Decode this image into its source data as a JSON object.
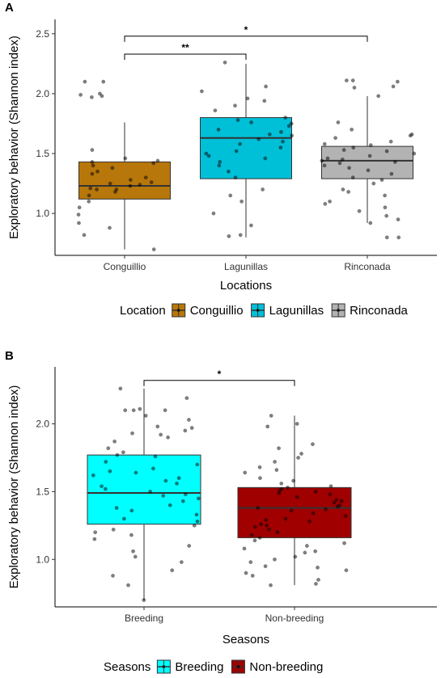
{
  "chart_data": [
    {
      "type": "box",
      "panel_label": "A",
      "xlabel": "Locations",
      "ylabel": "Exploratory behavior (Shannon index)",
      "ylim": [
        0.65,
        2.62
      ],
      "yticks": [
        1.0,
        1.5,
        2.0,
        2.5
      ],
      "ytick_labels": [
        "1.0",
        "1.5",
        "2.0",
        "2.5"
      ],
      "grid": false,
      "legend": {
        "title": "Location",
        "position": "bottom"
      },
      "categories": [
        "Conguillio",
        "Lagunillas",
        "Rinconada"
      ],
      "series": [
        {
          "name": "Conguillio",
          "color": "#b8770a",
          "box": {
            "min": 0.7,
            "q1": 1.12,
            "median": 1.23,
            "q3": 1.43,
            "max": 1.76
          },
          "points": [
            2.1,
            2.1,
            2.0,
            1.98,
            1.99,
            1.97,
            1.53,
            1.46,
            1.44,
            1.43,
            1.42,
            1.4,
            1.38,
            1.35,
            1.33,
            1.3,
            1.28,
            1.26,
            1.25,
            1.24,
            1.23,
            1.21,
            1.2,
            1.2,
            1.18,
            1.15,
            1.1,
            1.05,
            0.99,
            0.92,
            0.88,
            0.82,
            0.7
          ]
        },
        {
          "name": "Lagunillas",
          "color": "#00c0d8",
          "box": {
            "min": 0.8,
            "q1": 1.29,
            "median": 1.63,
            "q3": 1.8,
            "max": 2.25
          },
          "points": [
            2.26,
            2.06,
            2.02,
            1.96,
            1.94,
            1.9,
            1.86,
            1.8,
            1.78,
            1.76,
            1.75,
            1.73,
            1.7,
            1.68,
            1.66,
            1.65,
            1.62,
            1.6,
            1.58,
            1.55,
            1.52,
            1.5,
            1.48,
            1.46,
            1.43,
            1.4,
            1.35,
            1.3,
            1.2,
            1.15,
            1.1,
            1.0,
            0.9,
            0.82,
            0.81
          ]
        },
        {
          "name": "Rinconada",
          "color": "#b3b3b3",
          "box": {
            "min": 0.92,
            "q1": 1.29,
            "median": 1.44,
            "q3": 1.56,
            "max": 1.98
          },
          "points": [
            2.11,
            2.11,
            2.1,
            2.06,
            2.05,
            1.98,
            1.76,
            1.7,
            1.66,
            1.65,
            1.63,
            1.6,
            1.58,
            1.57,
            1.55,
            1.53,
            1.52,
            1.5,
            1.48,
            1.46,
            1.45,
            1.44,
            1.43,
            1.42,
            1.4,
            1.38,
            1.36,
            1.33,
            1.3,
            1.28,
            1.25,
            1.2,
            1.18,
            1.15,
            1.1,
            1.08,
            1.05,
            1.02,
            0.98,
            0.95,
            0.92,
            0.8,
            0.8
          ]
        }
      ],
      "significance": [
        {
          "from": "Conguillio",
          "to": "Lagunillas",
          "y": 2.33,
          "label": "**"
        },
        {
          "from": "Conguillio",
          "to": "Rinconada",
          "y": 2.48,
          "label": "*"
        }
      ]
    },
    {
      "type": "box",
      "panel_label": "B",
      "xlabel": "Seasons",
      "ylabel": "Exploratory behavior (Shannon index)",
      "ylim": [
        0.65,
        2.42
      ],
      "yticks": [
        1.0,
        1.5,
        2.0
      ],
      "ytick_labels": [
        "1.0",
        "1.5",
        "2.0"
      ],
      "grid": false,
      "legend": {
        "title": "Seasons",
        "position": "bottom"
      },
      "categories": [
        "Breeding",
        "Non-breeding"
      ],
      "series": [
        {
          "name": "Breeding",
          "color": "#00ffff",
          "box": {
            "min": 0.7,
            "q1": 1.26,
            "median": 1.49,
            "q3": 1.77,
            "max": 2.26
          },
          "points": [
            2.26,
            2.19,
            2.11,
            2.1,
            2.1,
            2.1,
            2.06,
            2.03,
            1.98,
            1.97,
            1.95,
            1.93,
            1.92,
            1.9,
            1.87,
            1.82,
            1.79,
            1.77,
            1.76,
            1.72,
            1.7,
            1.67,
            1.65,
            1.64,
            1.62,
            1.6,
            1.58,
            1.56,
            1.54,
            1.52,
            1.5,
            1.48,
            1.47,
            1.45,
            1.43,
            1.4,
            1.38,
            1.36,
            1.33,
            1.3,
            1.28,
            1.25,
            1.22,
            1.2,
            1.18,
            1.15,
            1.1,
            1.06,
            1.02,
            0.98,
            0.92,
            0.88,
            0.81,
            0.7
          ]
        },
        {
          "name": "Non-breeding",
          "color": "#a00000",
          "box": {
            "min": 0.81,
            "q1": 1.16,
            "median": 1.38,
            "q3": 1.53,
            "max": 2.06
          },
          "points": [
            2.06,
            2.0,
            1.98,
            1.85,
            1.82,
            1.78,
            1.75,
            1.72,
            1.68,
            1.66,
            1.64,
            1.6,
            1.58,
            1.56,
            1.54,
            1.53,
            1.52,
            1.51,
            1.5,
            1.49,
            1.48,
            1.46,
            1.44,
            1.43,
            1.42,
            1.4,
            1.39,
            1.38,
            1.37,
            1.36,
            1.34,
            1.32,
            1.3,
            1.29,
            1.28,
            1.26,
            1.25,
            1.24,
            1.22,
            1.2,
            1.18,
            1.16,
            1.14,
            1.12,
            1.1,
            1.08,
            1.06,
            1.05,
            1.02,
            1.0,
            0.98,
            0.95,
            0.94,
            0.92,
            0.9,
            0.88,
            0.85,
            0.82,
            0.81
          ]
        }
      ],
      "significance": [
        {
          "from": "Breeding",
          "to": "Non-breeding",
          "y": 2.32,
          "label": "*"
        }
      ]
    }
  ]
}
